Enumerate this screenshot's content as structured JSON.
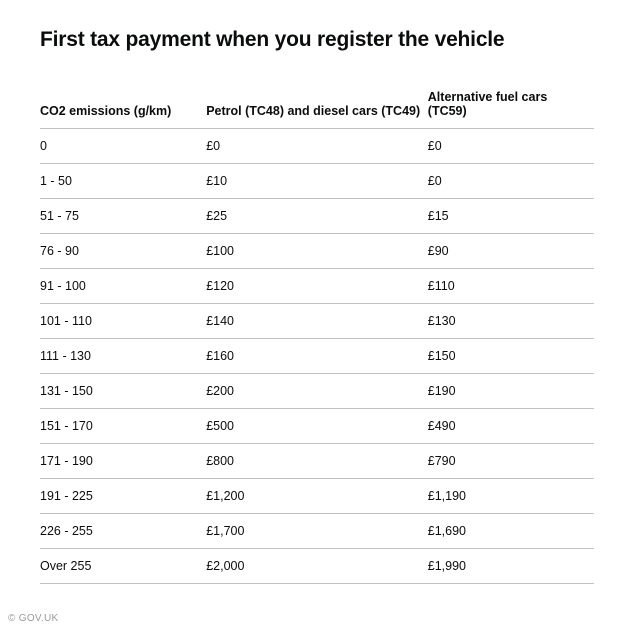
{
  "title": "First tax payment when you register the vehicle",
  "table": {
    "columns": [
      "CO2 emissions (g/km)",
      "Petrol (TC48) and diesel cars (TC49)",
      "Alternative fuel cars (TC59)"
    ],
    "rows": [
      [
        "0",
        "£0",
        "£0"
      ],
      [
        "1 - 50",
        "£10",
        "£0"
      ],
      [
        "51 - 75",
        "£25",
        "£15"
      ],
      [
        "76 - 90",
        "£100",
        "£90"
      ],
      [
        "91 - 100",
        "£120",
        "£110"
      ],
      [
        "101 - 110",
        "£140",
        "£130"
      ],
      [
        "111 - 130",
        "£160",
        "£150"
      ],
      [
        "131 - 150",
        "£200",
        "£190"
      ],
      [
        "151 - 170",
        "£500",
        "£490"
      ],
      [
        "171 - 190",
        "£800",
        "£790"
      ],
      [
        "191 - 225",
        "£1,200",
        "£1,190"
      ],
      [
        "226 - 255",
        "£1,700",
        "£1,690"
      ],
      [
        "Over 255",
        "£2,000",
        "£1,990"
      ]
    ]
  },
  "attribution": "© GOV.UK",
  "styling": {
    "font_family": "Arial",
    "title_fontsize": 21,
    "title_fontweight": 700,
    "cell_fontsize": 12.5,
    "header_fontweight": 700,
    "text_color": "#0b0c0c",
    "border_color": "#bfc1c3",
    "background_color": "#ffffff",
    "attribution_color": "#9a9a9a",
    "column_widths_pct": [
      30,
      40,
      30
    ],
    "row_padding_v": 10
  }
}
